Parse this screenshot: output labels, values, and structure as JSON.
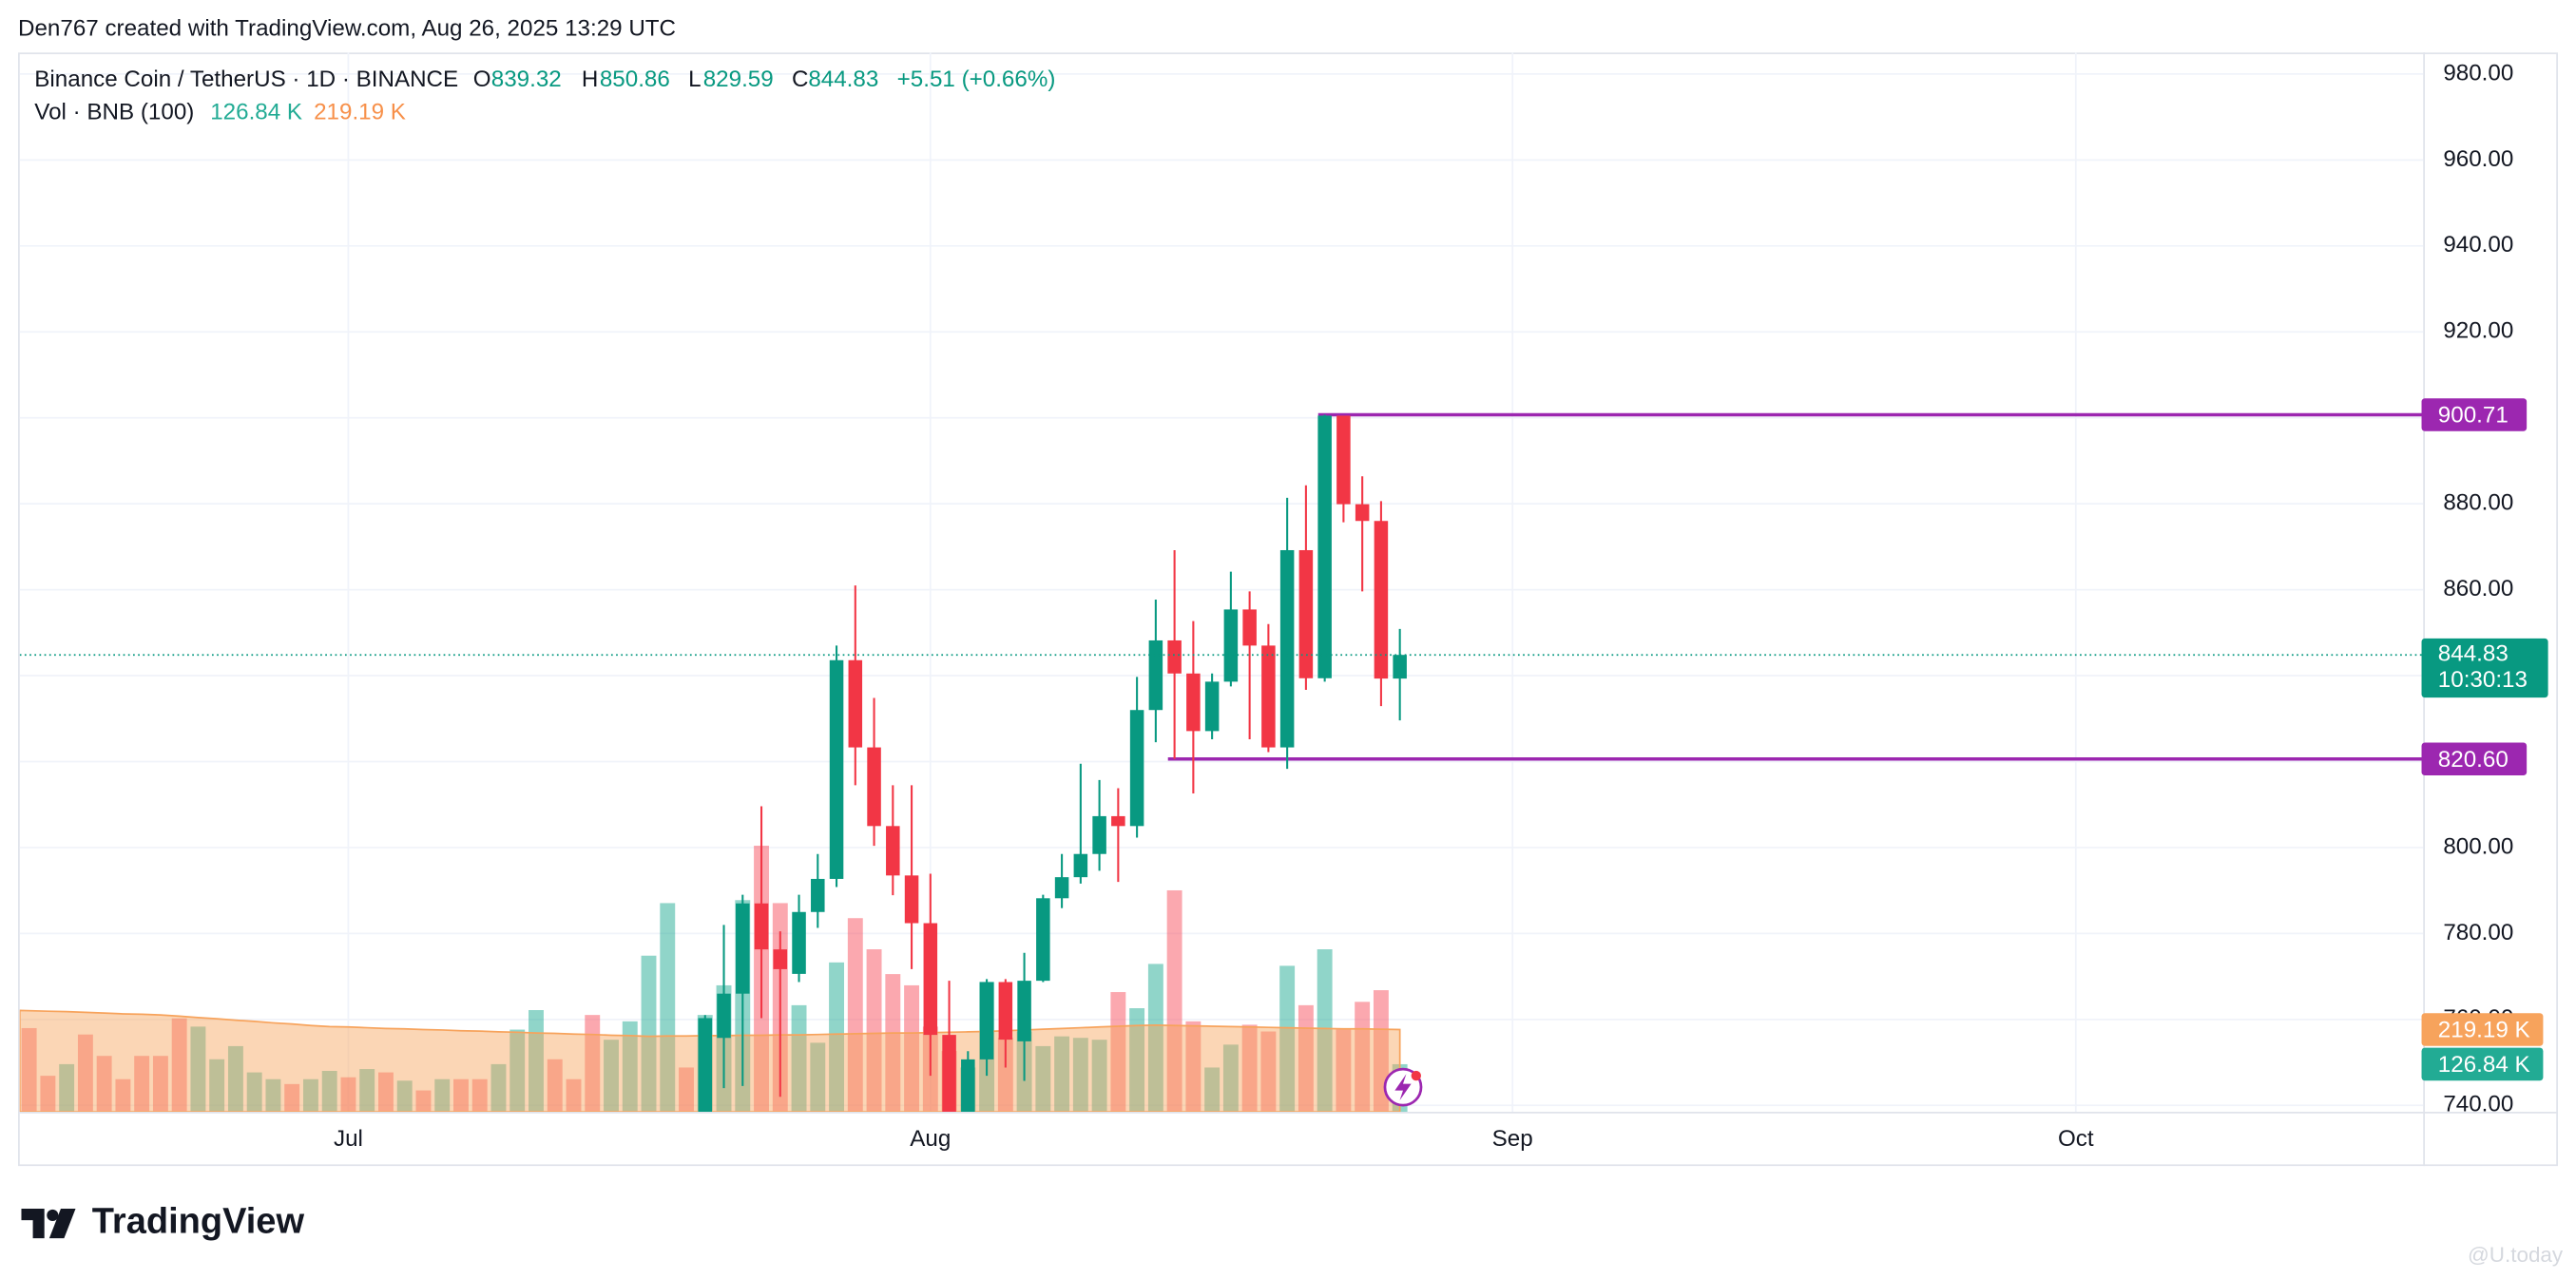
{
  "chart_data": {
    "type": "candlestick",
    "byline": "Den767 created with TradingView.com, Aug 26, 2025 13:29 UTC",
    "title": "Binance Coin / TetherUS · 1D · BINANCE",
    "ohlc_labels": [
      "O",
      "H",
      "L",
      "C"
    ],
    "change": "+5.51 (+0.66%)",
    "countdown": "10:30:13",
    "brand": "TradingView",
    "watermark": "@U.today",
    "categories": [
      null,
      null,
      null,
      null,
      null,
      null,
      null,
      null,
      null,
      null,
      null,
      null,
      null,
      null,
      null,
      null,
      null,
      "Jul",
      null,
      null,
      null,
      null,
      null,
      null,
      null,
      null,
      null,
      null,
      null,
      null,
      null,
      null,
      null,
      null,
      null,
      null,
      null,
      null,
      null,
      null,
      null,
      null,
      null,
      null,
      null,
      null,
      null,
      null,
      "Aug",
      null,
      null,
      null,
      null,
      null,
      null,
      null,
      null,
      null,
      null,
      null,
      null,
      null,
      null,
      null,
      null,
      null,
      null,
      null,
      null,
      null,
      null,
      null,
      null,
      null,
      null,
      null,
      null,
      null,
      null,
      "Sep",
      null,
      null,
      null,
      null,
      null,
      null,
      null,
      null,
      null,
      null,
      null,
      null,
      null,
      null,
      null,
      null,
      null,
      null,
      null,
      null,
      null,
      null,
      null,
      null,
      null,
      null,
      null,
      null,
      null,
      "Oct",
      null,
      null,
      null,
      null,
      null,
      null,
      null,
      null,
      null,
      null,
      null,
      null,
      null,
      null,
      null,
      null,
      null,
      null
    ],
    "open": [
      null,
      null,
      null,
      null,
      null,
      null,
      null,
      null,
      null,
      null,
      null,
      null,
      null,
      null,
      null,
      null,
      null,
      null,
      null,
      null,
      null,
      null,
      null,
      null,
      null,
      null,
      null,
      null,
      null,
      null,
      null,
      null,
      null,
      null,
      null,
      null,
      738,
      755.7,
      766,
      787,
      776.3,
      770.6,
      785,
      792.7,
      843.6,
      823.3,
      805,
      793.5,
      782.4,
      756.4,
      738,
      750.7,
      768.7,
      754.9,
      769,
      788.2,
      793.1,
      798.5,
      807.3,
      805,
      832,
      848.2,
      840.5,
      827.1,
      838.6,
      855.4,
      847,
      823.3,
      869.2,
      839.4,
      900.5,
      879.9,
      876,
      839.32,
      null,
      null,
      null,
      null,
      null,
      null,
      null,
      null,
      null,
      null,
      null,
      null,
      null,
      null,
      null,
      null,
      null,
      null,
      null,
      null,
      null,
      null,
      null,
      null,
      null,
      null,
      null,
      null,
      null,
      null,
      null,
      null,
      null,
      null,
      null,
      null,
      null,
      null,
      null,
      null,
      null,
      null,
      null,
      null,
      null,
      null,
      null,
      null,
      null,
      null,
      null,
      null,
      null,
      null
    ],
    "high": [
      null,
      null,
      null,
      null,
      null,
      null,
      null,
      null,
      null,
      null,
      null,
      null,
      null,
      null,
      null,
      null,
      null,
      null,
      null,
      null,
      null,
      null,
      null,
      null,
      null,
      null,
      null,
      null,
      null,
      null,
      null,
      null,
      null,
      null,
      null,
      null,
      761,
      782,
      789,
      809.6,
      780.5,
      789,
      798.5,
      847,
      861,
      834.8,
      814.5,
      814.5,
      793.9,
      769,
      752.6,
      769.4,
      769.4,
      775.5,
      789,
      798.5,
      819.5,
      815.7,
      813.8,
      839.7,
      857.7,
      869.2,
      852.7,
      840.5,
      864.2,
      859.6,
      852,
      881.4,
      884.3,
      900.71,
      900.2,
      886.4,
      880.6,
      850.86,
      null,
      null,
      null,
      null,
      null,
      null,
      null,
      null,
      null,
      null,
      null,
      null,
      null,
      null,
      null,
      null,
      null,
      null,
      null,
      null,
      null,
      null,
      null,
      null,
      null,
      null,
      null,
      null,
      null,
      null,
      null,
      null,
      null,
      null,
      null,
      null,
      null,
      null,
      null,
      null,
      null,
      null,
      null,
      null,
      null,
      null,
      null,
      null,
      null,
      null,
      null,
      null,
      null,
      null
    ],
    "low": [
      null,
      null,
      null,
      null,
      null,
      null,
      null,
      null,
      null,
      null,
      null,
      null,
      null,
      null,
      null,
      null,
      null,
      null,
      null,
      null,
      null,
      null,
      null,
      null,
      null,
      null,
      null,
      null,
      null,
      null,
      null,
      null,
      null,
      null,
      null,
      null,
      735,
      744,
      744.5,
      760.3,
      742,
      768.7,
      781.3,
      790.8,
      814.5,
      800.4,
      788.9,
      771.7,
      746.9,
      735,
      735,
      746.9,
      748.8,
      745.7,
      768.7,
      785.9,
      791.6,
      794.6,
      792,
      802.3,
      824.5,
      820.6,
      812.6,
      825.2,
      837.5,
      825.2,
      822.2,
      818.3,
      836.7,
      838.6,
      875.7,
      859.6,
      832.9,
      829.59,
      null,
      null,
      null,
      null,
      null,
      null,
      null,
      null,
      null,
      null,
      null,
      null,
      null,
      null,
      null,
      null,
      null,
      null,
      null,
      null,
      null,
      null,
      null,
      null,
      null,
      null,
      null,
      null,
      null,
      null,
      null,
      null,
      null,
      null,
      null,
      null,
      null,
      null,
      null,
      null,
      null,
      null,
      null,
      null,
      null,
      null,
      null,
      null,
      null,
      null,
      null,
      null,
      null,
      null
    ],
    "close": [
      null,
      null,
      null,
      null,
      null,
      null,
      null,
      null,
      null,
      null,
      null,
      null,
      null,
      null,
      null,
      null,
      null,
      null,
      null,
      null,
      null,
      null,
      null,
      null,
      null,
      null,
      null,
      null,
      null,
      null,
      null,
      null,
      null,
      null,
      null,
      null,
      760.3,
      766,
      787,
      776.3,
      771.7,
      785,
      792.7,
      843.6,
      823.3,
      805,
      793.5,
      782.4,
      756.4,
      738,
      750.7,
      768.7,
      755.3,
      769,
      788.2,
      793.1,
      798.5,
      807.3,
      805,
      832,
      848.2,
      840.5,
      827.1,
      838.6,
      855.4,
      847,
      823.3,
      869.2,
      839.4,
      900.5,
      879.9,
      876,
      839.32,
      844.83,
      null,
      null,
      null,
      null,
      null,
      null,
      null,
      null,
      null,
      null,
      null,
      null,
      null,
      null,
      null,
      null,
      null,
      null,
      null,
      null,
      null,
      null,
      null,
      null,
      null,
      null,
      null,
      null,
      null,
      null,
      null,
      null,
      null,
      null,
      null,
      null,
      null,
      null,
      null,
      null,
      null,
      null,
      null,
      null,
      null,
      null,
      null,
      null,
      null,
      null,
      null,
      null,
      null,
      null
    ],
    "up_color": "#089981",
    "down_color": "#f23645",
    "ylim": [
      738.5,
      985
    ],
    "yticks": [
      {
        "value": 740,
        "label": "740.00"
      },
      {
        "value": 760,
        "label": "760.00"
      },
      {
        "value": 780,
        "label": "780.00"
      },
      {
        "value": 800,
        "label": "800.00"
      },
      {
        "value": 820,
        "label": "820.00"
      },
      {
        "value": 840,
        "label": "840.00"
      },
      {
        "value": 860,
        "label": "860.00"
      },
      {
        "value": 880,
        "label": "880.00"
      },
      {
        "value": 900,
        "label": "900.00"
      },
      {
        "value": 920,
        "label": "920.00"
      },
      {
        "value": 940,
        "label": "940.00"
      },
      {
        "value": 960,
        "label": "960.00"
      },
      {
        "value": 980,
        "label": "980.00"
      }
    ],
    "grid": true,
    "hlines": [
      {
        "value": 900.71,
        "color": "#9c27b0"
      },
      {
        "value": 820.6,
        "label": "820.60",
        "color": "#9c27b0"
      }
    ],
    "volume_ylim": [
      0,
      2822000
    ],
    "volume": {
      "name": "Vol · BNB (100)",
      "color": "#22ab94",
      "values": [
        223000,
        96000,
        127000,
        206000,
        149000,
        87000,
        149000,
        149000,
        249000,
        227000,
        140000,
        175000,
        105000,
        87000,
        74000,
        87000,
        109000,
        92000,
        114000,
        105000,
        83000,
        57000,
        87000,
        87000,
        87000,
        127000,
        219000,
        271000,
        140000,
        87000,
        258000,
        192000,
        241000,
        416000,
        556000,
        118000,
        258000,
        337000,
        564000,
        709000,
        556000,
        284000,
        184000,
        398000,
        516000,
        433000,
        367000,
        337000,
        227000,
        162000,
        118000,
        346000,
        197000,
        214000,
        175000,
        201000,
        197000,
        192000,
        319000,
        276000,
        394000,
        590000,
        241000,
        118000,
        179000,
        232000,
        214000,
        389000,
        284000,
        433000,
        219000,
        293000,
        324000,
        126840,
        null,
        null,
        null,
        null,
        null,
        null,
        null,
        null,
        null,
        null,
        null,
        null,
        null,
        null,
        null,
        null,
        null,
        null,
        null,
        null,
        null,
        null,
        null,
        null,
        null,
        null,
        null,
        null,
        null,
        null,
        null,
        null,
        null,
        null,
        null,
        null,
        null,
        null,
        null,
        null,
        null,
        null,
        null,
        null,
        null,
        null,
        null,
        null,
        null,
        null,
        null,
        null,
        null,
        null
      ],
      "colors": [
        "#f7525f",
        "#f7525f",
        "#22ab94",
        "#f7525f",
        "#f7525f",
        "#f7525f",
        "#f7525f",
        "#f7525f",
        "#f7525f",
        "#22ab94",
        "#22ab94",
        "#22ab94",
        "#22ab94",
        "#22ab94",
        "#f7525f",
        "#22ab94",
        "#22ab94",
        "#f7525f",
        "#22ab94",
        "#f7525f",
        "#22ab94",
        "#f7525f",
        "#22ab94",
        "#f7525f",
        "#f7525f",
        "#22ab94",
        "#22ab94",
        "#22ab94",
        "#f7525f",
        "#f7525f",
        "#f7525f",
        "#22ab94",
        "#22ab94",
        "#22ab94",
        "#22ab94",
        "#f7525f",
        "#22ab94",
        "#22ab94",
        "#22ab94",
        "#f7525f",
        "#f7525f",
        "#22ab94",
        "#22ab94",
        "#22ab94",
        "#f7525f",
        "#f7525f",
        "#f7525f",
        "#f7525f",
        "#f7525f",
        "#f7525f",
        "#22ab94",
        "#22ab94",
        "#f7525f",
        "#22ab94",
        "#22ab94",
        "#22ab94",
        "#22ab94",
        "#22ab94",
        "#f7525f",
        "#22ab94",
        "#22ab94",
        "#f7525f",
        "#f7525f",
        "#22ab94",
        "#22ab94",
        "#f7525f",
        "#f7525f",
        "#22ab94",
        "#f7525f",
        "#22ab94",
        "#f7525f",
        "#f7525f",
        "#f7525f",
        "#22ab94",
        null,
        null,
        null,
        null,
        null,
        null,
        null,
        null,
        null,
        null,
        null,
        null,
        null,
        null,
        null,
        null,
        null,
        null,
        null,
        null,
        null,
        null,
        null,
        null,
        null,
        null,
        null,
        null,
        null,
        null,
        null,
        null,
        null,
        null,
        null,
        null,
        null,
        null,
        null,
        null,
        null,
        null,
        null,
        null,
        null,
        null,
        null,
        null,
        null,
        null,
        null,
        null,
        null,
        null
      ],
      "value_labels": [
        null,
        null,
        null,
        null,
        null,
        null,
        null,
        null,
        null,
        null,
        null,
        null,
        null,
        null,
        null,
        null,
        null,
        null,
        null,
        null,
        null,
        null,
        null,
        null,
        null,
        null,
        null,
        null,
        null,
        null,
        null,
        null,
        null,
        null,
        null,
        null,
        null,
        null,
        null,
        null,
        null,
        null,
        null,
        null,
        null,
        null,
        null,
        null,
        null,
        null,
        null,
        null,
        null,
        null,
        null,
        null,
        null,
        null,
        null,
        null,
        null,
        null,
        null,
        null,
        null,
        null,
        null,
        null,
        null,
        null,
        null,
        null,
        null,
        "126.84 K",
        null,
        null,
        null,
        null,
        null,
        null,
        null,
        null,
        null,
        null,
        null,
        null,
        null,
        null,
        null,
        null,
        null,
        null,
        null,
        null,
        null,
        null,
        null,
        null,
        null,
        null,
        null,
        null,
        null,
        null,
        null,
        null,
        null,
        null,
        null,
        null,
        null,
        null,
        null,
        null,
        null,
        null,
        null,
        null,
        null,
        null,
        null,
        null,
        null,
        null,
        null,
        null,
        null,
        null
      ]
    },
    "volume_ma": {
      "color": "#f7a35c",
      "values": [
        270000,
        268000,
        267000,
        265000,
        263000,
        261000,
        260000,
        258000,
        255000,
        251000,
        248000,
        244000,
        241000,
        237000,
        234000,
        230000,
        227000,
        226000,
        224000,
        222000,
        221000,
        219000,
        218000,
        216000,
        215000,
        213000,
        212000,
        210000,
        209000,
        207000,
        206000,
        204000,
        203000,
        201000,
        202000,
        202000,
        203000,
        203000,
        204000,
        204000,
        205000,
        205000,
        206000,
        207000,
        208000,
        209000,
        210000,
        210000,
        211000,
        212000,
        213000,
        214000,
        216000,
        218000,
        220000,
        222000,
        224000,
        226000,
        228000,
        230000,
        231000,
        230000,
        229000,
        228000,
        227000,
        226000,
        225000,
        224000,
        223000,
        222000,
        221000,
        221000,
        220000,
        219190,
        null,
        null,
        null,
        null,
        null,
        null,
        null,
        null,
        null,
        null,
        null,
        null,
        null,
        null,
        null,
        null,
        null,
        null,
        null,
        null,
        null,
        null,
        null,
        null,
        null,
        null,
        null,
        null,
        null,
        null,
        null,
        null,
        null,
        null,
        null,
        null,
        null,
        null,
        null,
        null,
        null,
        null,
        null,
        null,
        null,
        null,
        null,
        null,
        null,
        null,
        null,
        null,
        null,
        null
      ],
      "value_labels": [
        null,
        null,
        null,
        null,
        null,
        null,
        null,
        null,
        null,
        null,
        null,
        null,
        null,
        null,
        null,
        null,
        null,
        null,
        null,
        null,
        null,
        null,
        null,
        null,
        null,
        null,
        null,
        null,
        null,
        null,
        null,
        null,
        null,
        null,
        null,
        null,
        null,
        null,
        null,
        null,
        null,
        null,
        null,
        null,
        null,
        null,
        null,
        null,
        null,
        null,
        null,
        null,
        null,
        null,
        null,
        null,
        null,
        null,
        null,
        null,
        null,
        null,
        null,
        null,
        null,
        null,
        null,
        null,
        null,
        null,
        null,
        null,
        null,
        "219.19 K",
        null,
        null,
        null,
        null,
        null,
        null,
        null,
        null,
        null,
        null,
        null,
        null,
        null,
        null,
        null,
        null,
        null,
        null,
        null,
        null,
        null,
        null,
        null,
        null,
        null,
        null,
        null,
        null,
        null,
        null,
        null,
        null,
        null,
        null,
        null,
        null,
        null,
        null,
        null,
        null,
        null,
        null,
        null,
        null,
        null,
        null,
        null,
        null,
        null,
        null,
        null,
        null,
        null,
        null
      ]
    }
  }
}
